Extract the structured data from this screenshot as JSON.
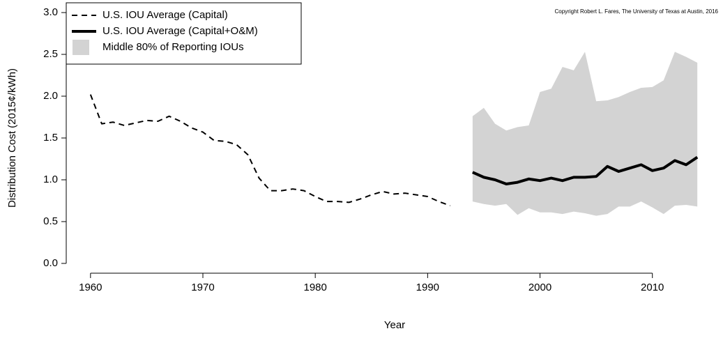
{
  "chart_data": {
    "type": "line",
    "copyright": "Copyright Robert L. Fares, The University of Texas at Austin, 2016",
    "x_label": "Year",
    "y_label": "Distribution Cost (2015¢/kWh)",
    "x": [
      1960,
      1961,
      1962,
      1963,
      1964,
      1965,
      1966,
      1967,
      1968,
      1969,
      1970,
      1971,
      1972,
      1973,
      1974,
      1975,
      1976,
      1977,
      1978,
      1979,
      1980,
      1981,
      1982,
      1983,
      1984,
      1985,
      1986,
      1987,
      1988,
      1989,
      1990,
      1991,
      1992,
      1993,
      1994,
      1995,
      1996,
      1997,
      1998,
      1999,
      2000,
      2001,
      2002,
      2003,
      2004,
      2005,
      2006,
      2007,
      2008,
      2009,
      2010,
      2011,
      2012,
      2013,
      2014
    ],
    "series": [
      {
        "name": "U.S. IOU Average (Capital)",
        "color": "#000000",
        "dash": true,
        "values": [
          2.02,
          1.67,
          1.69,
          1.65,
          1.68,
          1.71,
          1.7,
          1.76,
          1.7,
          1.62,
          1.57,
          1.47,
          1.46,
          1.42,
          1.3,
          1.02,
          0.87,
          0.87,
          0.89,
          0.87,
          0.8,
          0.74,
          0.74,
          0.73,
          0.77,
          0.82,
          0.86,
          0.83,
          0.84,
          0.82,
          0.8,
          0.74,
          0.69,
          null,
          null,
          null,
          null,
          null,
          null,
          null,
          null,
          null,
          null,
          null,
          null,
          null,
          null,
          null,
          null,
          null,
          null,
          null,
          null,
          null,
          null
        ]
      },
      {
        "name": "U.S. IOU Average (Capital+O&M)",
        "color": "#000000",
        "dash": false,
        "values": [
          null,
          null,
          null,
          null,
          null,
          null,
          null,
          null,
          null,
          null,
          null,
          null,
          null,
          null,
          null,
          null,
          null,
          null,
          null,
          null,
          null,
          null,
          null,
          null,
          null,
          null,
          null,
          null,
          null,
          null,
          null,
          null,
          null,
          null,
          1.09,
          1.03,
          1.0,
          0.95,
          0.97,
          1.01,
          0.99,
          1.02,
          0.99,
          1.03,
          1.03,
          1.04,
          1.16,
          1.1,
          1.14,
          1.18,
          1.11,
          1.14,
          1.23,
          1.18,
          1.27
        ]
      }
    ],
    "band": {
      "name": "Middle 80% of Reporting IOUs",
      "color": "#d3d3d3",
      "upper": [
        null,
        null,
        null,
        null,
        null,
        null,
        null,
        null,
        null,
        null,
        null,
        null,
        null,
        null,
        null,
        null,
        null,
        null,
        null,
        null,
        null,
        null,
        null,
        null,
        null,
        null,
        null,
        null,
        null,
        null,
        null,
        null,
        null,
        null,
        1.76,
        1.86,
        1.67,
        1.59,
        1.63,
        1.65,
        2.05,
        2.09,
        2.35,
        2.31,
        2.53,
        1.94,
        1.95,
        1.99,
        2.05,
        2.1,
        2.11,
        2.19,
        2.53,
        2.47,
        2.4
      ],
      "lower": [
        null,
        null,
        null,
        null,
        null,
        null,
        null,
        null,
        null,
        null,
        null,
        null,
        null,
        null,
        null,
        null,
        null,
        null,
        null,
        null,
        null,
        null,
        null,
        null,
        null,
        null,
        null,
        null,
        null,
        null,
        null,
        null,
        null,
        null,
        0.74,
        0.71,
        0.69,
        0.71,
        0.58,
        0.66,
        0.61,
        0.61,
        0.59,
        0.62,
        0.6,
        0.57,
        0.59,
        0.68,
        0.68,
        0.74,
        0.67,
        0.59,
        0.69,
        0.7,
        0.68
      ]
    },
    "xlim": [
      1957.84,
      2016.16
    ],
    "xticks": [
      1960,
      1970,
      1980,
      1990,
      2000,
      2010
    ],
    "ylim": [
      -0.117,
      3.117
    ],
    "yticks": [
      {
        "value": 0,
        "label": "0.0"
      },
      {
        "value": 0.5,
        "label": "0.5"
      },
      {
        "value": 1,
        "label": "1.0"
      },
      {
        "value": 1.5,
        "label": "1.5"
      },
      {
        "value": 2,
        "label": "2.0"
      },
      {
        "value": 2.5,
        "label": "2.5"
      },
      {
        "value": 3,
        "label": "3.0"
      }
    ],
    "legend": "top-left"
  }
}
